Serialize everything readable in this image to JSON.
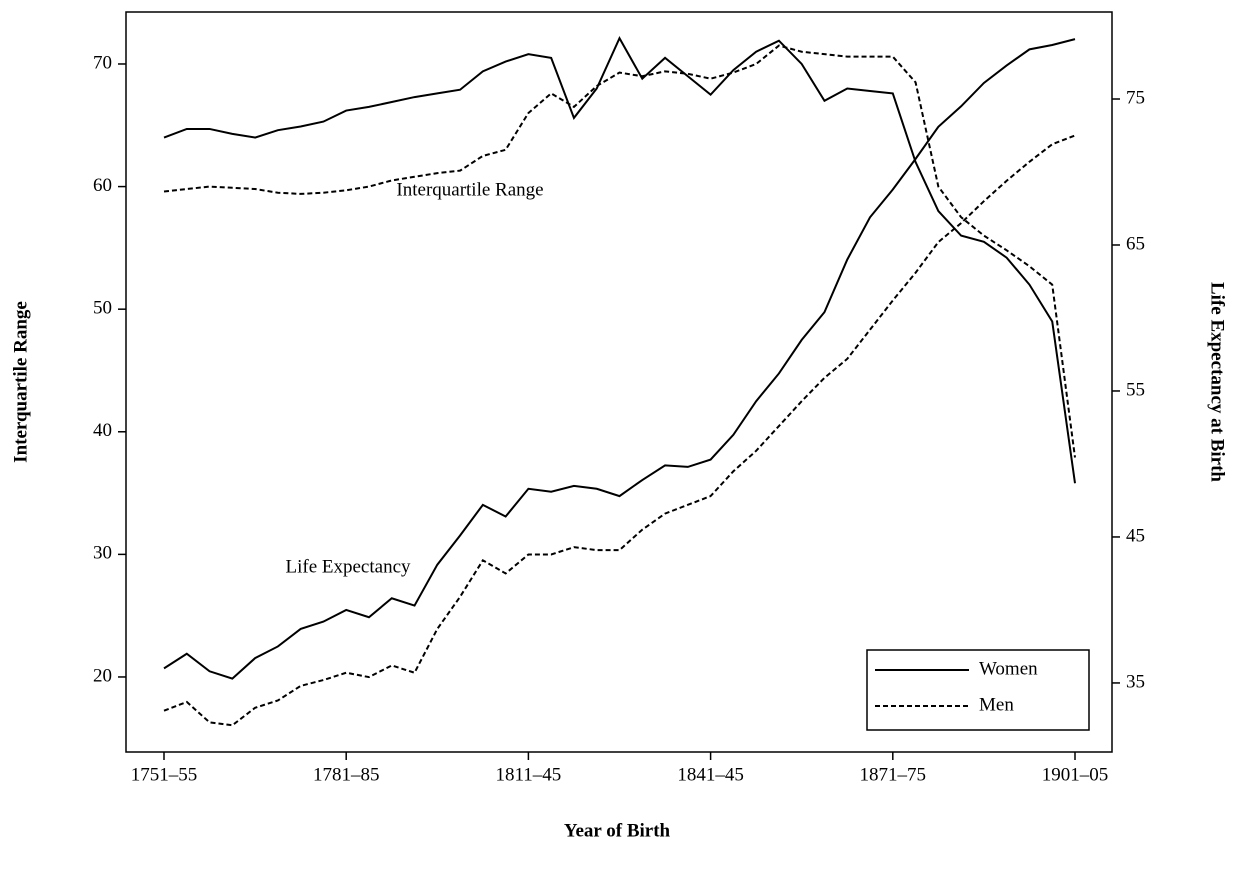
{
  "chart_data": {
    "type": "line",
    "xlabel": "Year of Birth",
    "ylabel": "Interquartile Range",
    "y2label": "Life Expectancy at Birth",
    "annotations": [
      "Interquartile Range",
      "Life Expectancy"
    ],
    "categories": [
      "1751–55",
      null,
      null,
      null,
      null,
      null,
      null,
      null,
      "1781–85",
      null,
      null,
      null,
      null,
      null,
      null,
      null,
      "1811–45",
      null,
      null,
      null,
      null,
      null,
      null,
      null,
      "1841–45",
      null,
      null,
      null,
      null,
      null,
      null,
      null,
      "1871–75",
      null,
      null,
      null,
      null,
      null,
      null,
      null,
      "1901–05"
    ],
    "ylim": [
      13.88,
      74.24
    ],
    "yticks": [
      20,
      30,
      40,
      50,
      60,
      70
    ],
    "y2lim": [
      30.27,
      80.96
    ],
    "y2ticks": [
      35,
      45,
      55,
      65,
      75
    ],
    "legend": "bottom-right",
    "series": [
      {
        "name": "Women",
        "color": "#000000",
        "style": "solid",
        "axis": "y",
        "values": [
          64.0,
          64.7,
          64.7,
          64.3,
          64.0,
          64.6,
          64.9,
          65.3,
          66.2,
          66.5,
          66.9,
          67.3,
          67.6,
          67.9,
          69.4,
          70.2,
          70.8,
          70.5,
          65.6,
          68.0,
          72.1,
          68.8,
          70.5,
          69.0,
          67.5,
          69.5,
          71.0,
          71.9,
          70.0,
          67.0,
          68.0,
          67.8,
          67.6,
          62.0,
          58.0,
          56.0,
          55.5,
          54.2,
          52.0,
          49.0,
          35.8
        ]
      },
      {
        "name": "Men",
        "color": "#000000",
        "style": "dashed",
        "axis": "y",
        "values": [
          59.6,
          59.8,
          60.0,
          59.9,
          59.8,
          59.5,
          59.4,
          59.5,
          59.7,
          60.0,
          60.5,
          60.8,
          61.1,
          61.3,
          62.5,
          63.0,
          66.0,
          67.6,
          66.5,
          68.2,
          69.3,
          69.0,
          69.4,
          69.2,
          68.8,
          69.3,
          70.0,
          71.5,
          71.0,
          70.8,
          70.6,
          70.6,
          70.6,
          68.5,
          60.0,
          57.5,
          56.0,
          54.8,
          53.5,
          52.0,
          37.9
        ]
      },
      {
        "name": "Women",
        "color": "#000000",
        "style": "solid",
        "axis": "y2",
        "values": [
          36.0,
          37.0,
          35.8,
          35.3,
          36.7,
          37.5,
          38.7,
          39.2,
          40.0,
          39.5,
          40.8,
          40.3,
          43.1,
          45.1,
          47.2,
          46.4,
          48.3,
          48.1,
          48.5,
          48.3,
          47.8,
          48.9,
          49.9,
          49.8,
          50.3,
          52.0,
          54.3,
          56.2,
          58.5,
          60.4,
          64.0,
          66.9,
          68.8,
          70.9,
          73.1,
          74.5,
          76.1,
          77.3,
          78.4,
          78.7,
          79.1
        ]
      },
      {
        "name": "Men",
        "color": "#000000",
        "style": "dashed",
        "axis": "y2",
        "values": [
          33.1,
          33.7,
          32.3,
          32.1,
          33.3,
          33.8,
          34.8,
          35.2,
          35.7,
          35.4,
          36.2,
          35.7,
          38.7,
          40.9,
          43.4,
          42.5,
          43.8,
          43.8,
          44.3,
          44.1,
          44.1,
          45.5,
          46.6,
          47.2,
          47.8,
          49.5,
          50.9,
          52.6,
          54.3,
          55.9,
          57.2,
          59.2,
          61.2,
          63.1,
          65.2,
          66.5,
          68.0,
          69.4,
          70.7,
          71.9,
          72.5
        ]
      }
    ]
  }
}
